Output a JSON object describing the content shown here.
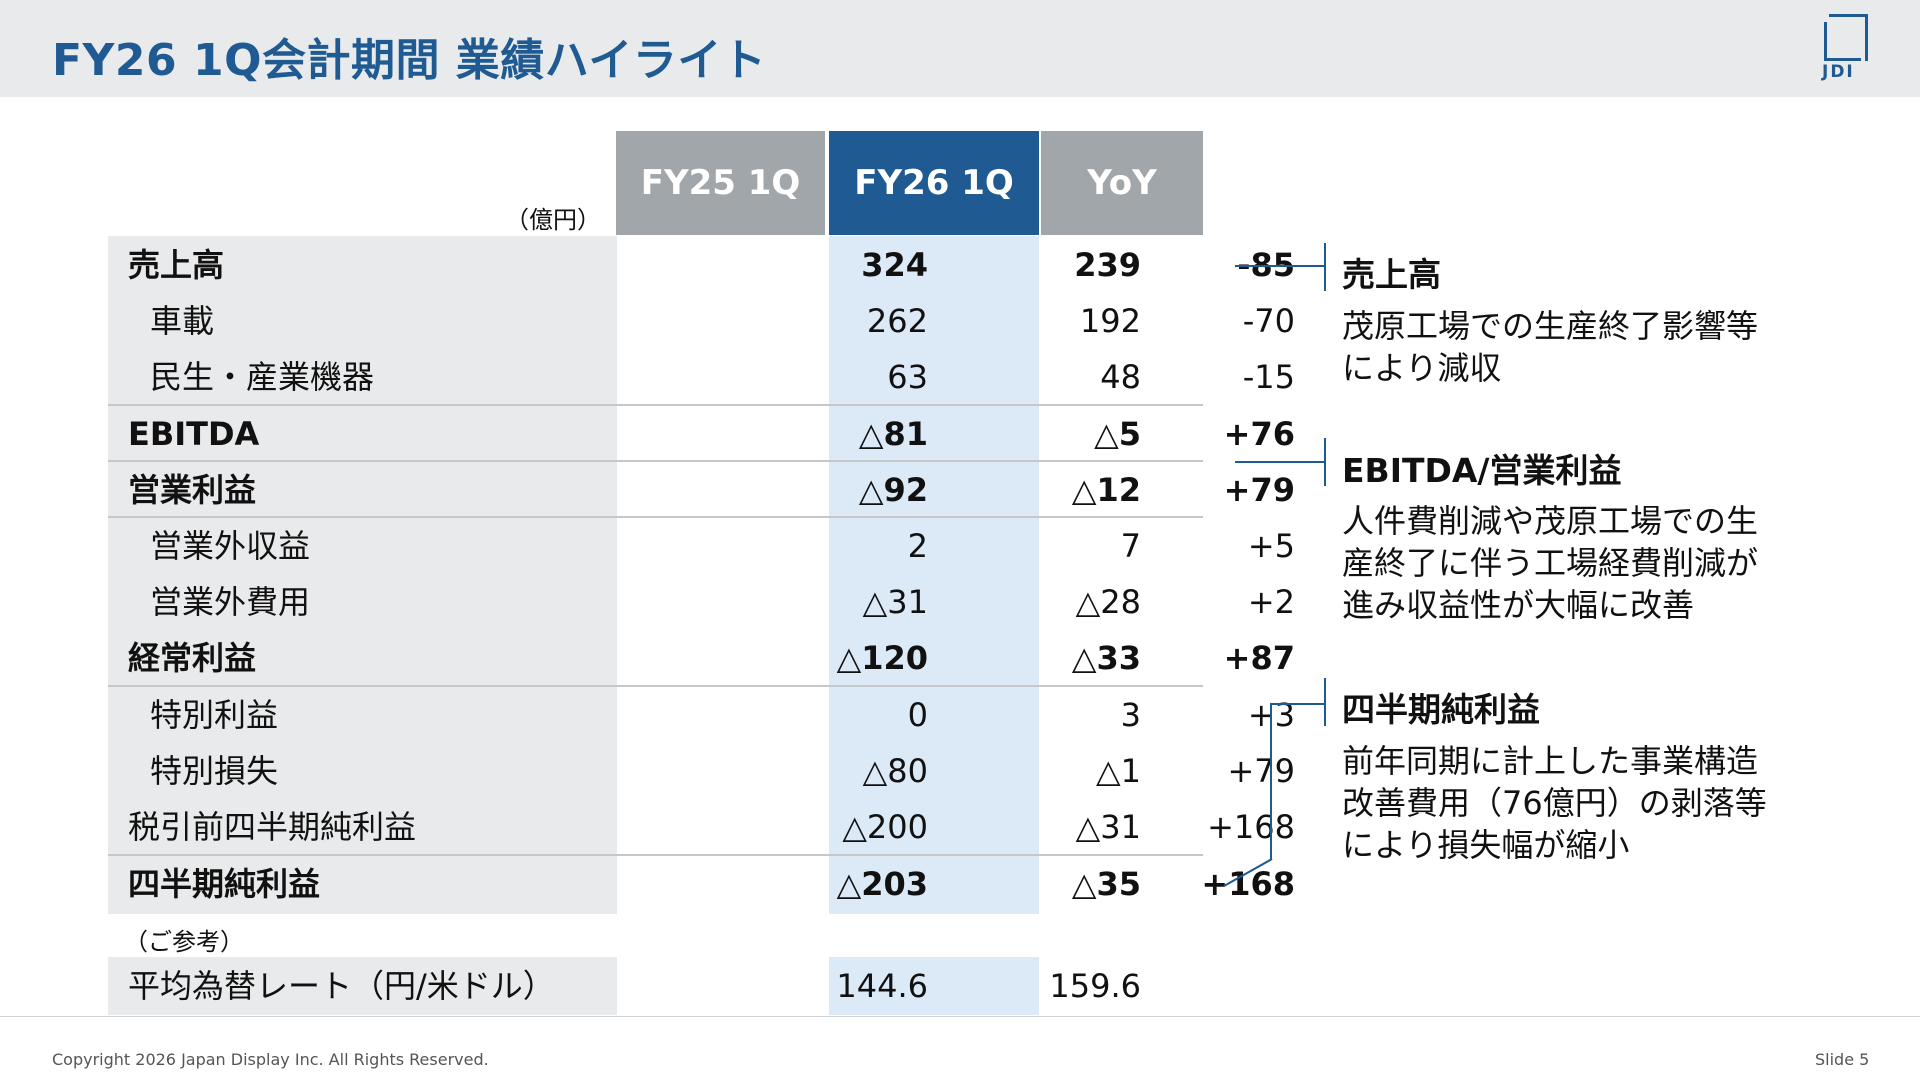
{
  "header": {
    "title": "FY26 1Q会計期間 業績ハイライト",
    "logo_text": "JDI"
  },
  "table": {
    "unit": "（億円）",
    "columns": [
      "FY25 1Q",
      "FY26 1Q",
      "YoY"
    ],
    "rows": [
      {
        "label": "売上高",
        "fy25": "324",
        "fy26": "239",
        "yoy": "-85"
      },
      {
        "label": "車載",
        "fy25": "262",
        "fy26": "192",
        "yoy": "-70"
      },
      {
        "label": "民生・産業機器",
        "fy25": "63",
        "fy26": "48",
        "yoy": "-15"
      },
      {
        "label": "EBITDA",
        "fy25": "△81",
        "fy26": "△5",
        "yoy": "+76"
      },
      {
        "label": "営業利益",
        "fy25": "△92",
        "fy26": "△12",
        "yoy": "+79"
      },
      {
        "label": "営業外収益",
        "fy25": "2",
        "fy26": "7",
        "yoy": "+5"
      },
      {
        "label": "営業外費用",
        "fy25": "△31",
        "fy26": "△28",
        "yoy": "+2"
      },
      {
        "label": "経常利益",
        "fy25": "△120",
        "fy26": "△33",
        "yoy": "+87"
      },
      {
        "label": "特別利益",
        "fy25": "0",
        "fy26": "3",
        "yoy": "+3"
      },
      {
        "label": "特別損失",
        "fy25": "△80",
        "fy26": "△1",
        "yoy": "+79"
      },
      {
        "label": "税引前四半期純利益",
        "fy25": "△200",
        "fy26": "△31",
        "yoy": "+168"
      },
      {
        "label": "四半期純利益",
        "fy25": "△203",
        "fy26": "△35",
        "yoy": "+168"
      }
    ],
    "reference_note": "（ご参考）",
    "fx": {
      "label": "平均為替レート（円/米ドル）",
      "fy25": "144.6",
      "fy26": "159.6"
    }
  },
  "callouts": [
    {
      "title": "売上高",
      "lines": [
        "茂原工場での生産終了影響等",
        "により減収"
      ]
    },
    {
      "title": "EBITDA/営業利益",
      "lines": [
        "人件費削減や茂原工場での生",
        "産終了に伴う工場経費削減が",
        "進み収益性が大幅に改善"
      ]
    },
    {
      "title": "四半期純利益",
      "lines": [
        "前年同期に計上した事業構造",
        "改善費用（76億円）の剥落等",
        "により損失幅が縮小"
      ]
    }
  ],
  "footer": {
    "copyright": "Copyright 2026 Japan Display Inc. All Rights Reserved.",
    "slide": "Slide 5"
  }
}
